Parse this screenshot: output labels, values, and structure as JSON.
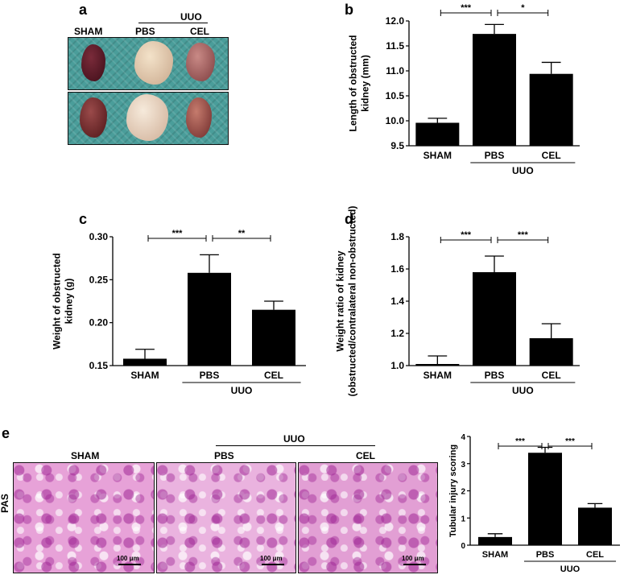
{
  "panels": {
    "a": {
      "letter": "a",
      "group_label": "UUO",
      "col_labels": [
        "SHAM",
        "PBS",
        "CEL"
      ]
    },
    "e": {
      "letter": "e",
      "row_label": "PAS",
      "col_labels": [
        "SHAM",
        "PBS",
        "CEL"
      ],
      "group_label": "UUO",
      "scale_bar": "100 μm"
    }
  },
  "colors": {
    "bar": "#000000",
    "photo_bg": "#4a9d9a",
    "pas_stain": "#e7a2d8"
  },
  "chart_data": [
    {
      "id": "b",
      "letter": "b",
      "type": "bar",
      "categories": [
        "SHAM",
        "PBS",
        "CEL"
      ],
      "group_label": "UUO",
      "values": [
        9.96,
        11.74,
        10.94
      ],
      "errors": [
        0.09,
        0.19,
        0.23
      ],
      "ylabel": [
        "Length of obstructed",
        "kidney (mm)"
      ],
      "ylim": [
        9.5,
        12.0
      ],
      "yticks": [
        9.5,
        10.0,
        10.5,
        11.0,
        11.5,
        12.0
      ],
      "ytick_labels": [
        "9.5",
        "10.0",
        "10.5",
        "11.0",
        "11.5",
        "12.0"
      ],
      "significance": [
        {
          "from": 0,
          "to": 1,
          "label": "***"
        },
        {
          "from": 1,
          "to": 2,
          "label": "*"
        }
      ]
    },
    {
      "id": "c",
      "letter": "c",
      "type": "bar",
      "categories": [
        "SHAM",
        "PBS",
        "CEL"
      ],
      "group_label": "UUO",
      "values": [
        0.158,
        0.258,
        0.215
      ],
      "errors": [
        0.011,
        0.021,
        0.01
      ],
      "ylabel": [
        "Weight of obstructed",
        "kidney (g)"
      ],
      "ylim": [
        0.15,
        0.3
      ],
      "yticks": [
        0.15,
        0.2,
        0.25,
        0.3
      ],
      "ytick_labels": [
        "0.15",
        "0.20",
        "0.25",
        "0.30"
      ],
      "significance": [
        {
          "from": 0,
          "to": 1,
          "label": "***"
        },
        {
          "from": 1,
          "to": 2,
          "label": "**"
        }
      ]
    },
    {
      "id": "d",
      "letter": "d",
      "type": "bar",
      "categories": [
        "SHAM",
        "PBS",
        "CEL"
      ],
      "group_label": "UUO",
      "values": [
        1.01,
        1.58,
        1.17
      ],
      "errors": [
        0.05,
        0.1,
        0.09
      ],
      "ylabel": [
        "Weight ratio of kidney",
        "(obstructed/contralateral non-obstructed)"
      ],
      "ylim": [
        1.0,
        1.8
      ],
      "yticks": [
        1.0,
        1.2,
        1.4,
        1.6,
        1.8
      ],
      "ytick_labels": [
        "1.0",
        "1.2",
        "1.4",
        "1.6",
        "1.8"
      ],
      "significance": [
        {
          "from": 0,
          "to": 1,
          "label": "***"
        },
        {
          "from": 1,
          "to": 2,
          "label": "***"
        }
      ]
    },
    {
      "id": "e",
      "type": "bar",
      "categories": [
        "SHAM",
        "PBS",
        "CEL"
      ],
      "group_label": "UUO",
      "values": [
        0.3,
        3.4,
        1.38
      ],
      "errors": [
        0.12,
        0.2,
        0.15
      ],
      "ylabel": [
        "Tubular injury scoring"
      ],
      "ylim": [
        0,
        4
      ],
      "yticks": [
        0,
        1,
        2,
        3,
        4
      ],
      "ytick_labels": [
        "0",
        "1",
        "2",
        "3",
        "4"
      ],
      "significance": [
        {
          "from": 0,
          "to": 1,
          "label": "***"
        },
        {
          "from": 1,
          "to": 2,
          "label": "***"
        }
      ]
    }
  ]
}
